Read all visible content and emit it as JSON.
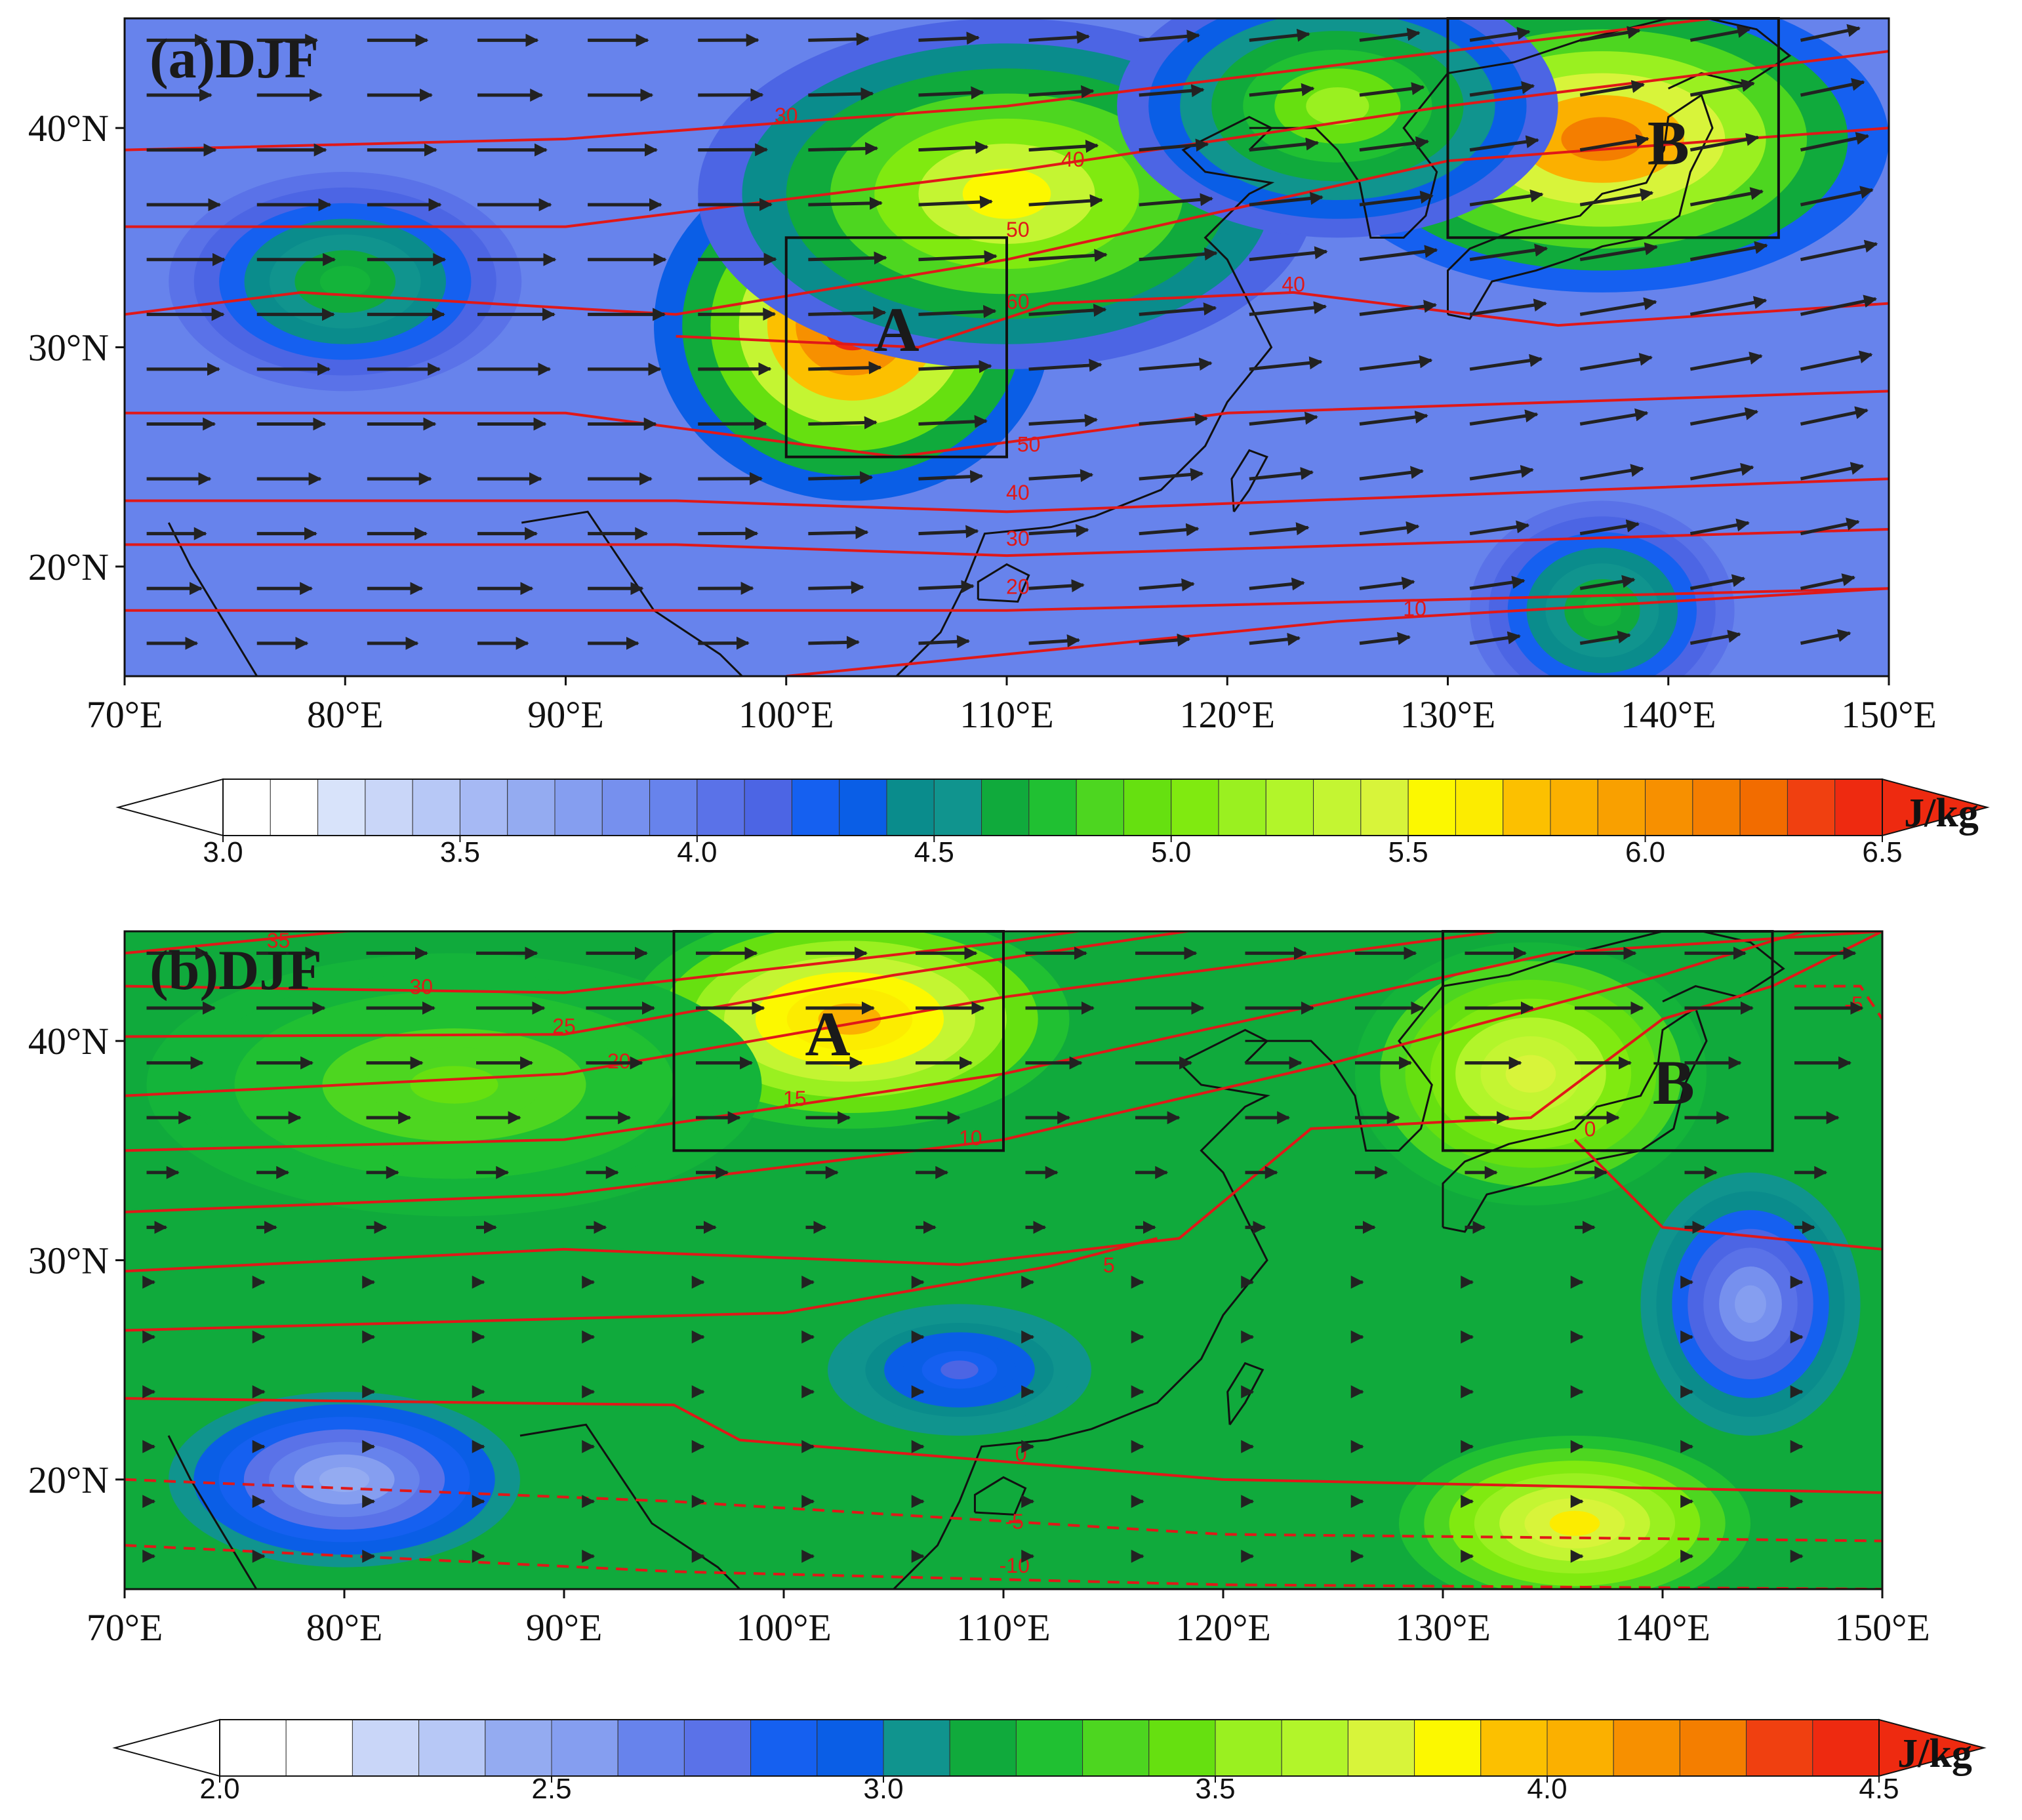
{
  "figure": {
    "panels": [
      {
        "id": "a",
        "title": "(a)DJF",
        "x_ticks": [
          "70°E",
          "80°E",
          "90°E",
          "100°E",
          "110°E",
          "120°E",
          "130°E",
          "140°E",
          "150°E"
        ],
        "y_ticks": [
          "20°N",
          "30°N",
          "40°N"
        ],
        "lon_range": [
          70,
          150
        ],
        "lat_range": [
          15,
          45
        ],
        "boxes": [
          {
            "label": "A",
            "lon": [
              100,
              110
            ],
            "lat": [
              25,
              35
            ],
            "label_at": [
              105,
              30.5
            ]
          },
          {
            "label": "B",
            "lon": [
              130,
              145
            ],
            "lat": [
              35,
              45
            ],
            "label_at": [
              140,
              39
            ]
          }
        ],
        "hotspots": [
          {
            "lon": 103,
            "lat": 31,
            "level": 6.5,
            "rx": 9,
            "ry": 8
          },
          {
            "lon": 137,
            "lat": 39.5,
            "level": 6.2,
            "rx": 13,
            "ry": 7
          },
          {
            "lon": 110,
            "lat": 37,
            "level": 5.6,
            "rx": 14,
            "ry": 8
          },
          {
            "lon": 125,
            "lat": 41,
            "level": 5.2,
            "rx": 10,
            "ry": 6
          },
          {
            "lon": 80,
            "lat": 33,
            "level": 4.7,
            "rx": 8,
            "ry": 5
          },
          {
            "lon": 137,
            "lat": 18,
            "level": 4.7,
            "rx": 6,
            "ry": 5
          }
        ],
        "background_level": 3.9,
        "contour_labels": [
          {
            "text": "30",
            "lon": 100,
            "lat": 40.5
          },
          {
            "text": "40",
            "lon": 113,
            "lat": 38.5
          },
          {
            "text": "50",
            "lon": 110.5,
            "lat": 35.3
          },
          {
            "text": "60",
            "lon": 110.5,
            "lat": 32
          },
          {
            "text": "40",
            "lon": 123,
            "lat": 32.8
          },
          {
            "text": "50",
            "lon": 111,
            "lat": 25.5
          },
          {
            "text": "40",
            "lon": 110.5,
            "lat": 23.3
          },
          {
            "text": "30",
            "lon": 110.5,
            "lat": 21.2
          },
          {
            "text": "20",
            "lon": 110.5,
            "lat": 19
          },
          {
            "text": "10",
            "lon": 128.5,
            "lat": 18
          }
        ]
      },
      {
        "id": "b",
        "title": "(b)DJF",
        "x_ticks": [
          "70°E",
          "80°E",
          "90°E",
          "100°E",
          "110°E",
          "120°E",
          "130°E",
          "140°E",
          "150°E"
        ],
        "y_ticks": [
          "20°N",
          "30°N",
          "40°N"
        ],
        "lon_range": [
          70,
          150
        ],
        "lat_range": [
          15,
          45
        ],
        "boxes": [
          {
            "label": "A",
            "lon": [
              95,
              110
            ],
            "lat": [
              35,
              45
            ],
            "label_at": [
              102,
              40
            ]
          },
          {
            "label": "B",
            "lon": [
              130,
              145
            ],
            "lat": [
              35,
              45
            ],
            "label_at": [
              140.5,
              37.8
            ]
          }
        ],
        "hotspots": [
          {
            "lon": 103,
            "lat": 41,
            "level": 4.1,
            "rx": 10,
            "ry": 5
          },
          {
            "lon": 134,
            "lat": 38.5,
            "level": 3.8,
            "rx": 8,
            "ry": 6
          },
          {
            "lon": 136,
            "lat": 18,
            "level": 3.9,
            "rx": 8,
            "ry": 4
          },
          {
            "lon": 85,
            "lat": 38,
            "level": 3.4,
            "rx": 14,
            "ry": 6
          },
          {
            "lon": 108,
            "lat": 25,
            "level": 2.8,
            "rx": 6,
            "ry": 3
          },
          {
            "lon": 80,
            "lat": 20,
            "level": 2.4,
            "rx": 8,
            "ry": 4
          },
          {
            "lon": 144,
            "lat": 28,
            "level": 2.5,
            "rx": 5,
            "ry": 6
          }
        ],
        "background_level": 3.15,
        "contour_labels": [
          {
            "text": "35",
            "lon": 77,
            "lat": 44.5
          },
          {
            "text": "30",
            "lon": 83.5,
            "lat": 42.4
          },
          {
            "text": "25",
            "lon": 90,
            "lat": 40.6
          },
          {
            "text": "20",
            "lon": 92.5,
            "lat": 39
          },
          {
            "text": "15",
            "lon": 100.5,
            "lat": 37.3
          },
          {
            "text": "10",
            "lon": 108.5,
            "lat": 35.5
          },
          {
            "text": "5",
            "lon": 114.8,
            "lat": 29.7
          },
          {
            "text": "0",
            "lon": 110.8,
            "lat": 21.1
          },
          {
            "text": "-5",
            "lon": 110.5,
            "lat": 18
          },
          {
            "text": "-10",
            "lon": 110.5,
            "lat": 16
          },
          {
            "text": "0",
            "lon": 136.7,
            "lat": 35.9
          },
          {
            "text": "-5",
            "lon": 148.7,
            "lat": 41.6
          }
        ]
      }
    ],
    "colorbars": [
      {
        "id": "cb-a",
        "min": 3.0,
        "max": 6.5,
        "step": 0.1,
        "ticks": [
          "3.0",
          "3.5",
          "4.0",
          "4.5",
          "5.0",
          "5.5",
          "6.0",
          "6.5"
        ],
        "unit": "J/kg"
      },
      {
        "id": "cb-b",
        "min": 2.0,
        "max": 4.5,
        "step": 0.1,
        "ticks": [
          "2.0",
          "2.5",
          "3.0",
          "3.5",
          "4.0",
          "4.5"
        ],
        "unit": "J/kg"
      }
    ],
    "palette": [
      "#ffffff",
      "#ffffff",
      "#d8e3fa",
      "#c9d6f8",
      "#b7c8f6",
      "#a6b9f4",
      "#94abf1",
      "#859ef0",
      "#7690ee",
      "#6783ec",
      "#5a72e8",
      "#4c65e4",
      "#1560f0",
      "#0a5ee6",
      "#0a8c8c",
      "#10948e",
      "#10aa3c",
      "#14b43a",
      "#20c032",
      "#4dd620",
      "#66e010",
      "#80ea10",
      "#9af020",
      "#b2f52a",
      "#c4f532",
      "#d8f43a",
      "#fcf800",
      "#fcec00",
      "#fcc000",
      "#fbb000",
      "#f9a000",
      "#f79000",
      "#f47e00",
      "#f26c00",
      "#f04010",
      "#ee2a10"
    ],
    "colors": {
      "contour": "#e01818",
      "box": "#111111",
      "coast": "#111111",
      "vectors": "#222222"
    }
  }
}
